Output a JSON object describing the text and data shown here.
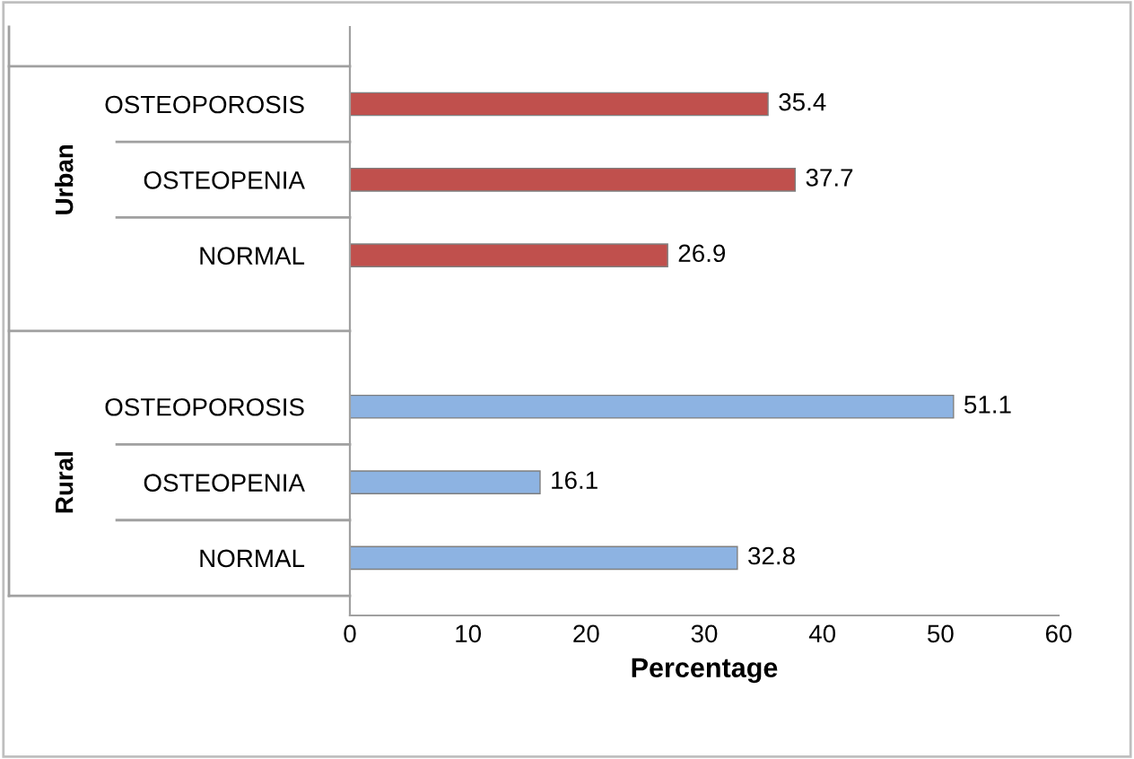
{
  "chart_data": {
    "type": "bar",
    "orientation": "horizontal",
    "categories": [
      "OSTEOPOROSIS",
      "OSTEOPENIA",
      "NORMAL",
      null,
      "OSTEOPOROSIS",
      "OSTEOPENIA",
      "NORMAL"
    ],
    "series": [
      {
        "color": "#c0504d",
        "values": [
          35.4,
          37.7,
          26.9,
          null,
          null,
          null,
          null
        ]
      },
      {
        "color": "#8db3e2",
        "values": [
          null,
          null,
          null,
          null,
          51.1,
          16.1,
          32.8
        ]
      }
    ],
    "annotations": [
      "Urban",
      "Rural"
    ],
    "xlabel": "Percentage",
    "xlim": [
      0,
      60
    ],
    "xticks": [
      0,
      10,
      20,
      30,
      40,
      50,
      60
    ],
    "data_labels": true,
    "grid": false,
    "legend": false
  }
}
